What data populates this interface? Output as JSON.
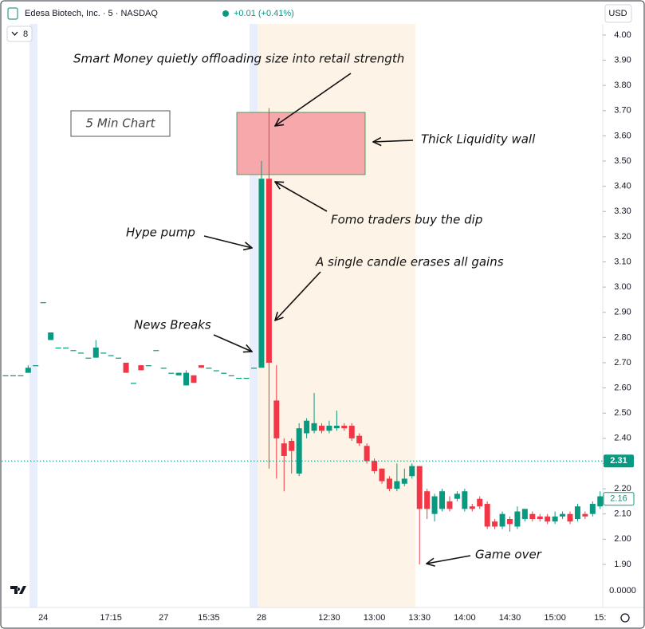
{
  "chart_data": {
    "type": "candlestick",
    "title": "Edesa Biotech, Inc. · 5 · NASDAQ",
    "change": "+0.01 (+0.41%)",
    "currency": "USD",
    "interval_badge": "8",
    "box_label": "5 Min Chart",
    "bottom_label": "0.0000",
    "annotations": [
      "Smart Money quietly offloading size into retail strength",
      "Thick Liquidity wall",
      "Fomo traders buy the dip",
      "Hype pump",
      "A single candle erases all gains",
      "News Breaks",
      "Game over"
    ],
    "up_color": "#089981",
    "down_color": "#f23645",
    "marker_prices": [
      2.31,
      2.16
    ],
    "categories": [
      null,
      null,
      null,
      null,
      null,
      "24",
      null,
      null,
      null,
      null,
      null,
      null,
      null,
      null,
      "17:15",
      null,
      null,
      null,
      null,
      null,
      null,
      "27",
      null,
      null,
      null,
      null,
      null,
      "15:35",
      null,
      null,
      null,
      null,
      null,
      null,
      "28",
      null,
      null,
      null,
      null,
      null,
      null,
      null,
      null,
      "12:30",
      null,
      null,
      null,
      null,
      null,
      "13:00",
      null,
      null,
      null,
      null,
      null,
      "13:30",
      null,
      null,
      null,
      null,
      null,
      "14:00",
      null,
      null,
      null,
      null,
      null,
      "14:30",
      null,
      null,
      null,
      null,
      null,
      "15:00",
      null,
      null,
      null,
      null,
      null,
      "15:"
    ],
    "open": [
      2.65,
      2.65,
      2.65,
      2.66,
      2.69,
      2.94,
      2.79,
      2.76,
      2.76,
      2.75,
      2.74,
      2.72,
      2.72,
      2.74,
      2.73,
      2.72,
      2.7,
      2.62,
      2.69,
      2.69,
      2.75,
      2.68,
      2.66,
      2.65,
      2.61,
      2.65,
      2.69,
      2.68,
      2.67,
      2.66,
      2.65,
      2.64,
      2.64,
      2.68,
      2.68,
      3.43,
      2.55,
      2.38,
      2.39,
      2.26,
      2.42,
      2.43,
      2.45,
      2.43,
      2.44,
      2.45,
      2.45,
      2.41,
      2.37,
      2.31,
      2.28,
      2.24,
      2.2,
      2.22,
      2.25,
      2.29,
      2.19,
      2.1,
      2.12,
      2.15,
      2.16,
      2.12,
      2.13,
      2.16,
      2.14,
      2.07,
      2.05,
      2.08,
      2.05,
      2.08,
      2.1,
      2.09,
      2.09,
      2.07,
      2.09,
      2.1,
      2.08,
      2.1,
      2.1,
      2.13
    ],
    "high": [
      2.65,
      2.65,
      2.65,
      2.69,
      2.69,
      2.94,
      2.82,
      2.76,
      2.76,
      2.75,
      2.74,
      2.72,
      2.79,
      2.74,
      2.73,
      2.72,
      2.7,
      2.62,
      2.69,
      2.69,
      2.75,
      2.68,
      2.66,
      2.66,
      2.67,
      2.65,
      2.69,
      2.68,
      2.67,
      2.66,
      2.65,
      2.64,
      2.64,
      2.68,
      3.5,
      3.71,
      2.69,
      2.4,
      2.4,
      2.46,
      2.48,
      2.58,
      2.46,
      2.47,
      2.51,
      2.46,
      2.46,
      2.42,
      2.38,
      2.32,
      2.28,
      2.25,
      2.3,
      2.28,
      2.3,
      2.29,
      2.2,
      2.18,
      2.2,
      2.17,
      2.19,
      2.2,
      2.14,
      2.17,
      2.15,
      2.08,
      2.11,
      2.09,
      2.13,
      2.12,
      2.11,
      2.1,
      2.1,
      2.11,
      2.11,
      2.11,
      2.14,
      2.11,
      2.15,
      2.19
    ],
    "low": [
      2.65,
      2.65,
      2.65,
      2.66,
      2.69,
      2.94,
      2.79,
      2.76,
      2.76,
      2.75,
      2.74,
      2.72,
      2.72,
      2.74,
      2.73,
      2.72,
      2.66,
      2.62,
      2.67,
      2.69,
      2.75,
      2.68,
      2.66,
      2.65,
      2.61,
      2.62,
      2.68,
      2.68,
      2.67,
      2.66,
      2.65,
      2.64,
      2.64,
      2.68,
      2.68,
      2.28,
      2.24,
      2.19,
      2.26,
      2.25,
      2.4,
      2.42,
      2.42,
      2.42,
      2.43,
      2.43,
      2.39,
      2.37,
      2.3,
      2.26,
      2.22,
      2.19,
      2.19,
      2.21,
      2.24,
      1.9,
      2.08,
      2.07,
      2.11,
      2.11,
      2.15,
      2.11,
      2.11,
      2.12,
      2.04,
      2.04,
      2.04,
      2.03,
      2.04,
      2.07,
      2.07,
      2.07,
      2.06,
      2.06,
      2.08,
      2.06,
      2.07,
      2.08,
      2.09,
      2.12
    ],
    "close": [
      2.65,
      2.65,
      2.65,
      2.68,
      2.69,
      2.94,
      2.82,
      2.76,
      2.76,
      2.75,
      2.74,
      2.72,
      2.76,
      2.74,
      2.73,
      2.72,
      2.66,
      2.62,
      2.67,
      2.69,
      2.75,
      2.68,
      2.66,
      2.66,
      2.66,
      2.62,
      2.68,
      2.68,
      2.67,
      2.66,
      2.65,
      2.64,
      2.64,
      2.68,
      3.43,
      2.7,
      2.4,
      2.33,
      2.35,
      2.44,
      2.47,
      2.46,
      2.43,
      2.45,
      2.45,
      2.44,
      2.4,
      2.38,
      2.31,
      2.27,
      2.23,
      2.2,
      2.23,
      2.24,
      2.29,
      2.12,
      2.12,
      2.17,
      2.19,
      2.12,
      2.18,
      2.19,
      2.12,
      2.13,
      2.05,
      2.05,
      2.1,
      2.06,
      2.11,
      2.12,
      2.08,
      2.08,
      2.07,
      2.09,
      2.1,
      2.07,
      2.13,
      2.09,
      2.14,
      2.17
    ],
    "ylim": [
      1.729,
      4.044
    ],
    "yticks": [
      {
        "value": 4,
        "label": "4.00"
      },
      {
        "value": 3.9,
        "label": "3.90"
      },
      {
        "value": 3.8,
        "label": "3.80"
      },
      {
        "value": 3.7,
        "label": "3.70"
      },
      {
        "value": 3.6,
        "label": "3.60"
      },
      {
        "value": 3.5,
        "label": "3.50"
      },
      {
        "value": 3.4,
        "label": "3.40"
      },
      {
        "value": 3.3,
        "label": "3.30"
      },
      {
        "value": 3.2,
        "label": "3.20"
      },
      {
        "value": 3.1,
        "label": "3.10"
      },
      {
        "value": 3,
        "label": "3.00"
      },
      {
        "value": 2.9,
        "label": "2.90"
      },
      {
        "value": 2.8,
        "label": "2.80"
      },
      {
        "value": 2.7,
        "label": "2.70"
      },
      {
        "value": 2.6,
        "label": "2.60"
      },
      {
        "value": 2.5,
        "label": "2.50"
      },
      {
        "value": 2.4,
        "label": "2.40"
      },
      {
        "value": 2.3,
        "label": "2.30"
      },
      {
        "value": 2.2,
        "label": "2.20"
      },
      {
        "value": 2.1,
        "label": "2.10"
      },
      {
        "value": 2,
        "label": "2.00"
      },
      {
        "value": 1.9,
        "label": "1.90"
      }
    ],
    "grid": false
  }
}
